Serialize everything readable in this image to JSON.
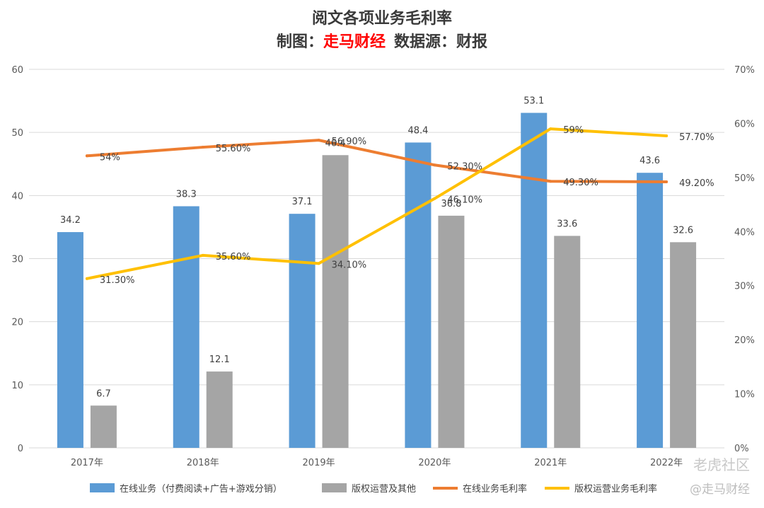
{
  "chart_data": {
    "type": "bar",
    "title": "阅文各项业务毛利率",
    "subtitle_prefix": "制图：",
    "subtitle_brand": "走马财经",
    "subtitle_suffix": "数据源：财报",
    "categories": [
      "2017年",
      "2018年",
      "2019年",
      "2020年",
      "2021年",
      "2022年"
    ],
    "y_left": {
      "min": 0,
      "max": 60,
      "step": 10,
      "ticks": [
        "0",
        "10",
        "20",
        "30",
        "40",
        "50",
        "60"
      ]
    },
    "y_right": {
      "min": 0,
      "max": 70,
      "step": 10,
      "ticks": [
        "0%",
        "10%",
        "20%",
        "30%",
        "40%",
        "50%",
        "60%",
        "70%"
      ]
    },
    "bar_series": [
      {
        "name": "在线业务（付费阅读+广告+游戏分销）",
        "color": "#5b9bd5",
        "values": [
          34.2,
          38.3,
          37.1,
          48.4,
          53.1,
          43.6
        ],
        "labels": [
          "34.2",
          "38.3",
          "37.1",
          "48.4",
          "53.1",
          "43.6"
        ]
      },
      {
        "name": "版权运营及其他",
        "color": "#a5a5a5",
        "values": [
          6.7,
          12.1,
          46.4,
          36.8,
          33.6,
          32.6
        ],
        "labels": [
          "6.7",
          "12.1",
          "46.4",
          "36.8",
          "33.6",
          "32.6"
        ]
      }
    ],
    "line_series": [
      {
        "name": "在线业务毛利率",
        "color": "#ed7d31",
        "values": [
          54.0,
          55.6,
          56.9,
          52.3,
          49.3,
          49.2
        ],
        "labels": [
          "54%",
          "55.60%",
          "56.90%",
          "52.30%",
          "49.30%",
          "49.20%"
        ]
      },
      {
        "name": "版权运营业务毛利率",
        "color": "#ffc000",
        "values": [
          31.3,
          35.6,
          34.1,
          46.1,
          59.0,
          57.7
        ],
        "labels": [
          "31.30%",
          "35.60%",
          "34.10%",
          "46.10%",
          "59%",
          "57.70%"
        ]
      }
    ],
    "legend_position": "bottom",
    "grid": true
  },
  "colors": {
    "brand": "#ff0000",
    "grid": "#d9d9d9"
  },
  "watermark": {
    "site": "老虎社区",
    "handle": "@走马财经"
  }
}
